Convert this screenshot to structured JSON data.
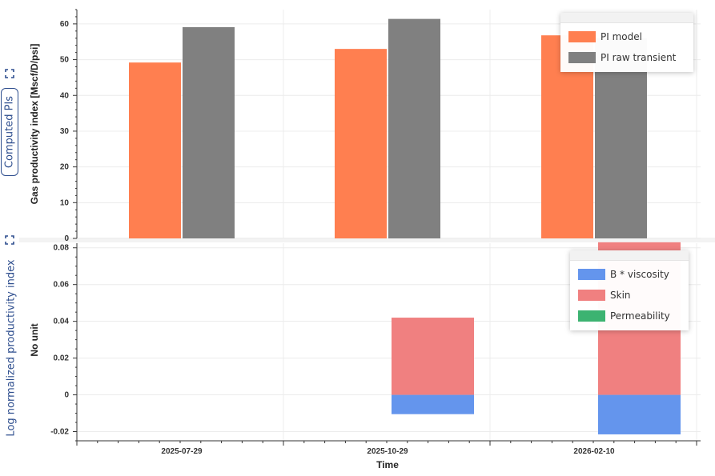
{
  "sidebar": {
    "tab_top": "Computed PIs",
    "tab_bottom": "Log normalized productivity index"
  },
  "colors": {
    "pi_model": "#ff7f50",
    "pi_raw": "#808080",
    "b_viscosity": "#6495ed",
    "skin": "#f08080",
    "permeability": "#3cb371"
  },
  "chart_data": [
    {
      "type": "bar",
      "title": "",
      "xlabel": "",
      "ylabel": "Gas productivity index [Mscf/D/psi]",
      "ylim": [
        0,
        64
      ],
      "yticks": [
        "0",
        "10",
        "20",
        "30",
        "40",
        "50",
        "60"
      ],
      "categories": [
        "2025-07-29",
        "2025-10-29",
        "2026-02-10"
      ],
      "series": [
        {
          "name": "PI model",
          "values": [
            49.2,
            53.0,
            56.8
          ]
        },
        {
          "name": "PI raw transient",
          "values": [
            59.1,
            61.4,
            56.0
          ]
        }
      ],
      "legend_position": "top-right",
      "grid": true
    },
    {
      "type": "bar",
      "stacked": true,
      "title": "",
      "xlabel": "Time",
      "ylabel": "No unit",
      "ylim": [
        -0.025,
        0.0825
      ],
      "yticks": [
        "-0.02",
        "0",
        "0.02",
        "0.04",
        "0.06",
        "0.08"
      ],
      "categories": [
        "2025-07-29",
        "2025-10-29",
        "2026-02-10"
      ],
      "series": [
        {
          "name": "B * viscosity",
          "values": [
            0,
            -0.0105,
            -0.0215
          ]
        },
        {
          "name": "Skin",
          "values": [
            0,
            0.042,
            0.083
          ]
        },
        {
          "name": "Permeability",
          "values": [
            0,
            0,
            0
          ]
        }
      ],
      "legend_position": "top-right",
      "grid": true
    }
  ]
}
